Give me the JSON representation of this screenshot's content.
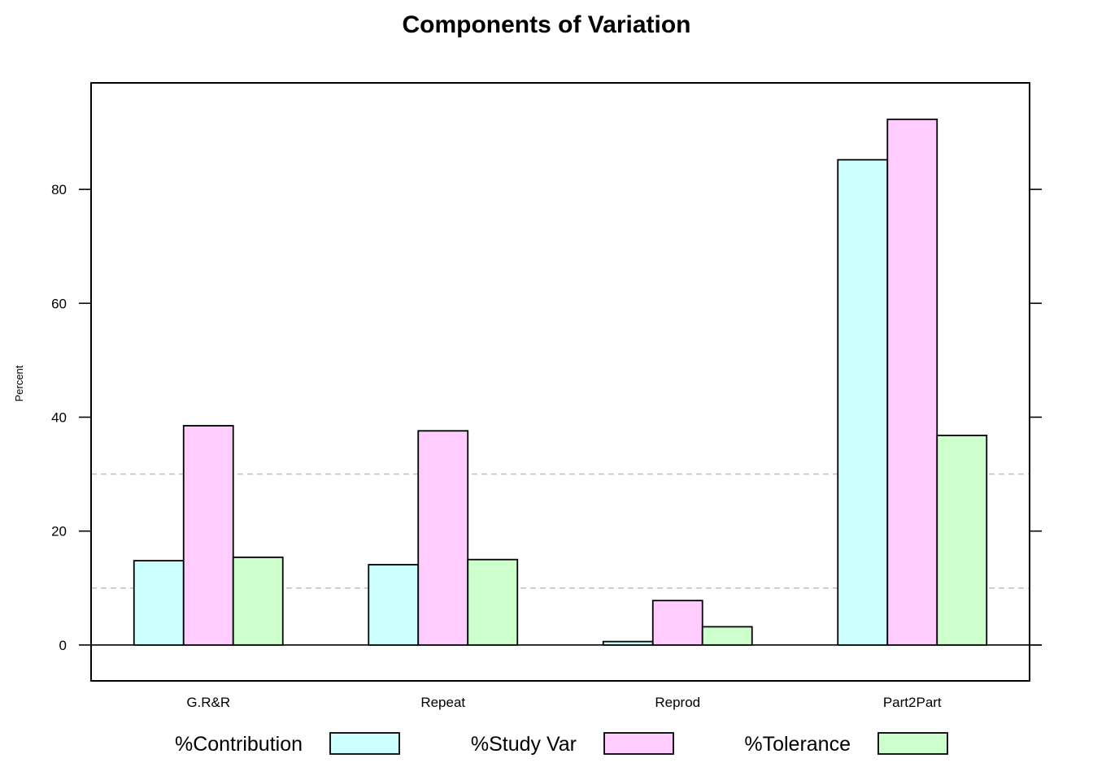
{
  "chart_data": {
    "type": "bar",
    "title": "Components of Variation",
    "ylabel": "Percent",
    "xlabel": "",
    "categories": [
      "G.R&R",
      "Repeat",
      "Reprod",
      "Part2Part"
    ],
    "series": [
      {
        "name": "%Contribution",
        "color": "#ccffff",
        "values": [
          14.8,
          14.1,
          0.6,
          85.2
        ]
      },
      {
        "name": "%Study Var",
        "color": "#ffccff",
        "values": [
          38.5,
          37.6,
          7.8,
          92.3
        ]
      },
      {
        "name": "%Tolerance",
        "color": "#ccffcc",
        "values": [
          15.4,
          15.0,
          3.2,
          36.8
        ]
      }
    ],
    "ylim": [
      -6.3,
      98.7
    ],
    "yticks": [
      0,
      20,
      40,
      60,
      80
    ],
    "reference_lines": [
      10,
      30
    ],
    "reference_line_color": "#bfbfbf",
    "zero_line": true,
    "grid": false,
    "legend_position": "bottom"
  }
}
